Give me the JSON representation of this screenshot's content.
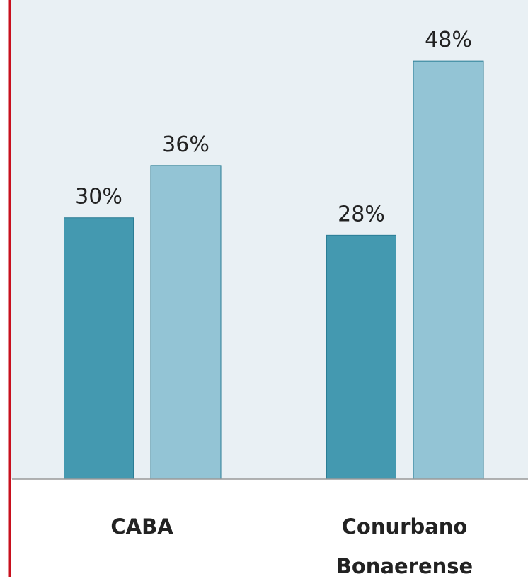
{
  "chart_data": {
    "type": "bar",
    "categories": [
      "CABA",
      "Conurbano Bonaerense"
    ],
    "series": [
      {
        "color": "#4499b0",
        "values": [
          30,
          28
        ],
        "value_labels": [
          "30%",
          "28%"
        ]
      },
      {
        "color": "#93c4d5",
        "values": [
          36,
          48
        ],
        "value_labels": [
          "36%",
          "48%"
        ]
      }
    ],
    "ylim": [
      0,
      55
    ]
  }
}
